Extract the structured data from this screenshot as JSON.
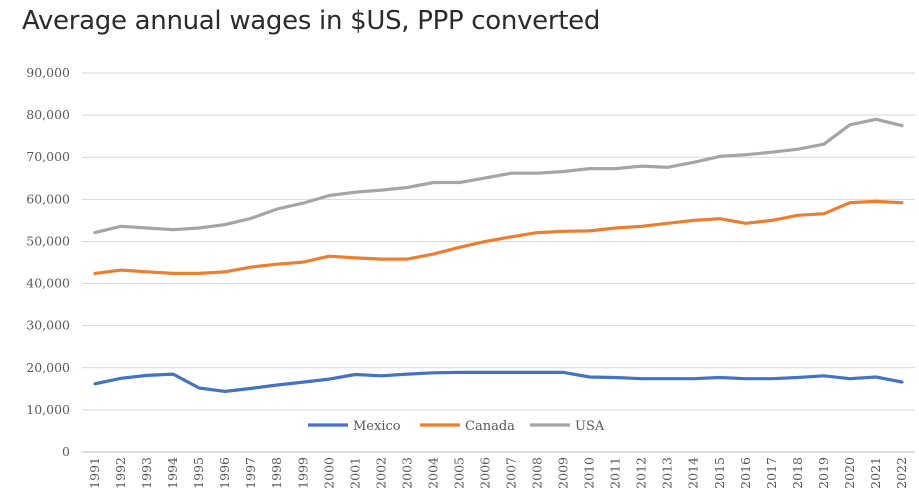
{
  "chart_data": {
    "type": "line",
    "title": "Average annual wages in $US, PPP converted",
    "xlabel": "",
    "ylabel": "",
    "ylim": [
      0,
      90000
    ],
    "yticks": [
      "0",
      "10,000",
      "20,000",
      "30,000",
      "40,000",
      "50,000",
      "60,000",
      "70,000",
      "80,000",
      "90,000"
    ],
    "yticks_values": [
      0,
      10000,
      20000,
      30000,
      40000,
      50000,
      60000,
      70000,
      80000,
      90000
    ],
    "grid": true,
    "legend_position": "bottom",
    "categories": [
      "1991",
      "1992",
      "1993",
      "1994",
      "1995",
      "1996",
      "1997",
      "1998",
      "1999",
      "2000",
      "2001",
      "2002",
      "2003",
      "2004",
      "2005",
      "2006",
      "2007",
      "2008",
      "2009",
      "2010",
      "2011",
      "2012",
      "2013",
      "2014",
      "2015",
      "2016",
      "2017",
      "2018",
      "2019",
      "2020",
      "2021",
      "2022"
    ],
    "series": [
      {
        "name": "Mexico",
        "color": "#4472c4",
        "values": [
          16200,
          17500,
          18200,
          18500,
          15200,
          14400,
          15100,
          15900,
          16600,
          17300,
          18400,
          18100,
          18500,
          18800,
          18900,
          18900,
          18900,
          18900,
          18900,
          17800,
          17700,
          17400,
          17400,
          17400,
          17700,
          17400,
          17400,
          17700,
          18100,
          17400,
          17800,
          16600
        ]
      },
      {
        "name": "Canada",
        "color": "#ed7d31",
        "values": [
          42400,
          43200,
          42800,
          42400,
          42400,
          42800,
          43900,
          44600,
          45100,
          46500,
          46100,
          45800,
          45800,
          47000,
          48600,
          50000,
          51100,
          52100,
          52400,
          52500,
          53200,
          53600,
          54300,
          55000,
          55400,
          54300,
          55000,
          56200,
          56600,
          59200,
          59500,
          59200
        ]
      },
      {
        "name": "USA",
        "color": "#a5a5a5",
        "values": [
          52100,
          53600,
          53200,
          52800,
          53200,
          54000,
          55500,
          57700,
          59100,
          60900,
          61700,
          62200,
          62800,
          64000,
          64000,
          65100,
          66200,
          66200,
          66600,
          67300,
          67300,
          67900,
          67600,
          68800,
          70200,
          70600,
          71200,
          71900,
          73100,
          77700,
          79000,
          77500
        ]
      }
    ]
  }
}
